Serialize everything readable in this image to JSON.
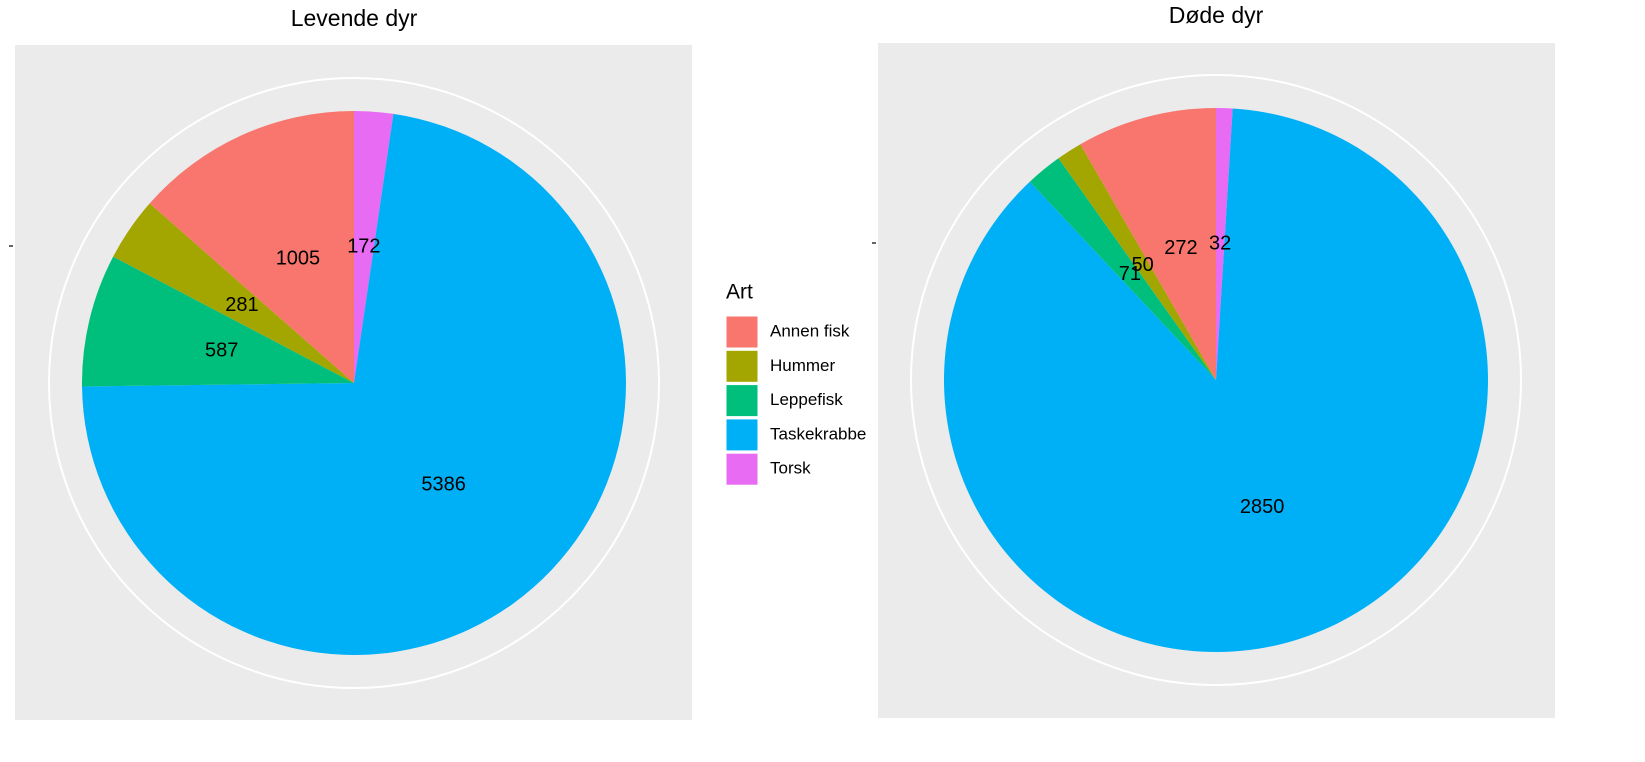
{
  "chart_data": [
    {
      "type": "pie",
      "title": "Levende dyr",
      "categories": [
        "Annen fisk",
        "Hummer",
        "Leppefisk",
        "Taskekrabbe",
        "Torsk"
      ],
      "values": [
        1005,
        281,
        587,
        5386,
        172
      ],
      "colors": [
        "#f8766d",
        "#a3a500",
        "#00bf7d",
        "#00b0f6",
        "#e76bf3"
      ],
      "legend_title": "Art"
    },
    {
      "type": "pie",
      "title": "Døde dyr",
      "categories": [
        "Annen fisk",
        "Hummer",
        "Leppefisk",
        "Taskekrabbe",
        "Torsk"
      ],
      "values": [
        272,
        50,
        71,
        2850,
        32
      ],
      "colors": [
        "#f8766d",
        "#a3a500",
        "#00bf7d",
        "#00b0f6",
        "#e76bf3"
      ]
    }
  ]
}
